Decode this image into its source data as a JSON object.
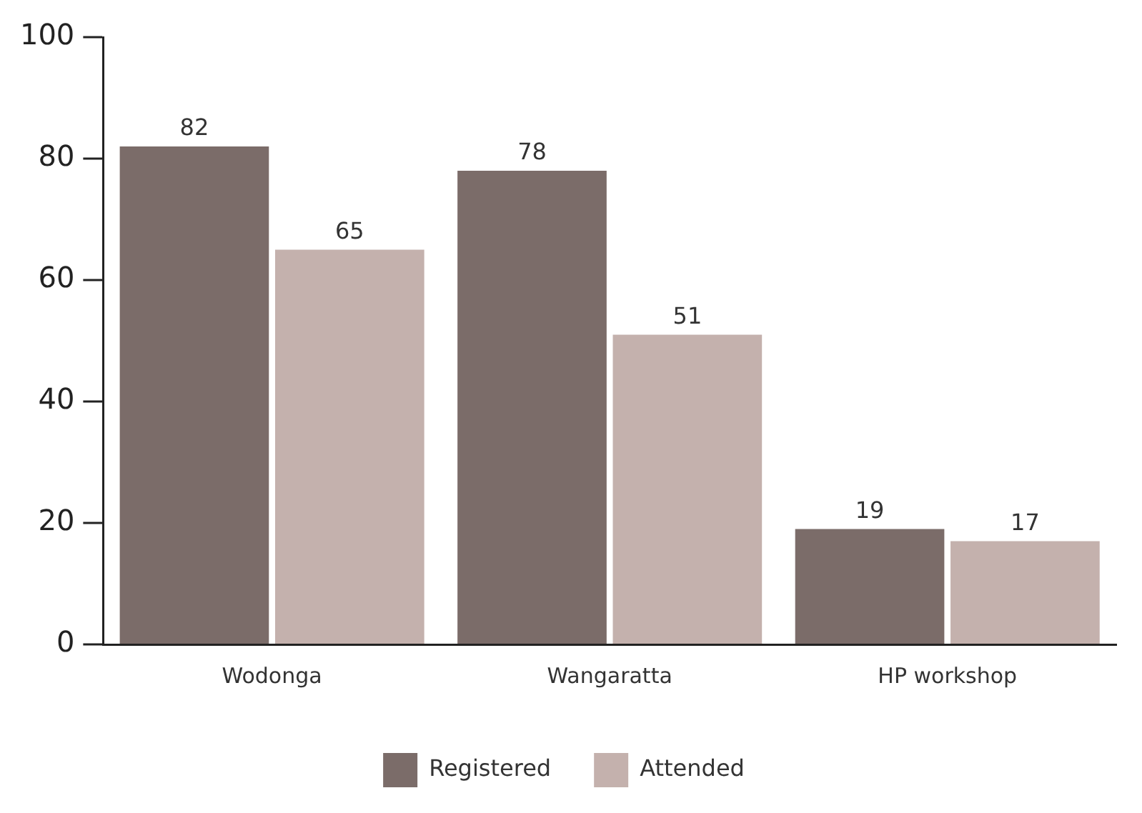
{
  "chart_data": {
    "type": "bar",
    "categories": [
      "Wodonga",
      "Wangaratta",
      "HP workshop"
    ],
    "series": [
      {
        "name": "Registered",
        "color": "#7b6c69",
        "values": [
          82,
          78,
          19
        ]
      },
      {
        "name": "Attended",
        "color": "#c4b1ad",
        "values": [
          65,
          51,
          17
        ]
      }
    ],
    "ylim": [
      0,
      100
    ],
    "yticks": [
      0,
      20,
      40,
      60,
      80,
      100
    ],
    "grid": false,
    "legend": "bottom",
    "data_labels": true
  }
}
